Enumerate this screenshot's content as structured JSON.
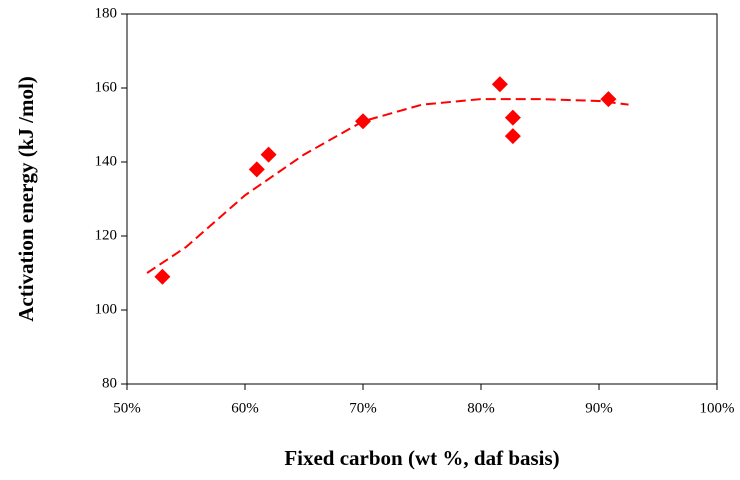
{
  "chart_data": {
    "type": "scatter",
    "xlabel": "Fixed carbon (wt %, daf basis)",
    "ylabel": "Activation energy (kJ /mol)",
    "xlim": [
      50,
      100
    ],
    "ylim": [
      80,
      180
    ],
    "xticks": [
      {
        "value": 50,
        "label": "50%"
      },
      {
        "value": 60,
        "label": "60%"
      },
      {
        "value": 70,
        "label": "70%"
      },
      {
        "value": 80,
        "label": "80%"
      },
      {
        "value": 90,
        "label": "90%"
      },
      {
        "value": 100,
        "label": "100%"
      }
    ],
    "yticks": [
      80,
      100,
      120,
      140,
      160,
      180
    ],
    "grid": false,
    "series": [
      {
        "kind": "points",
        "color": "#ff0000",
        "x": [
          53,
          61,
          62,
          70,
          81.6,
          82.7,
          82.7,
          90.8
        ],
        "values": [
          109,
          138,
          142,
          151,
          161,
          152,
          147,
          157
        ]
      },
      {
        "kind": "trend",
        "color": "#ff0000",
        "x": [
          51.7,
          55,
          60,
          65,
          70,
          75,
          80,
          85,
          90,
          92.5
        ],
        "values": [
          110,
          117,
          131,
          142,
          151,
          155.5,
          157,
          157,
          156.5,
          155.5
        ]
      }
    ]
  }
}
